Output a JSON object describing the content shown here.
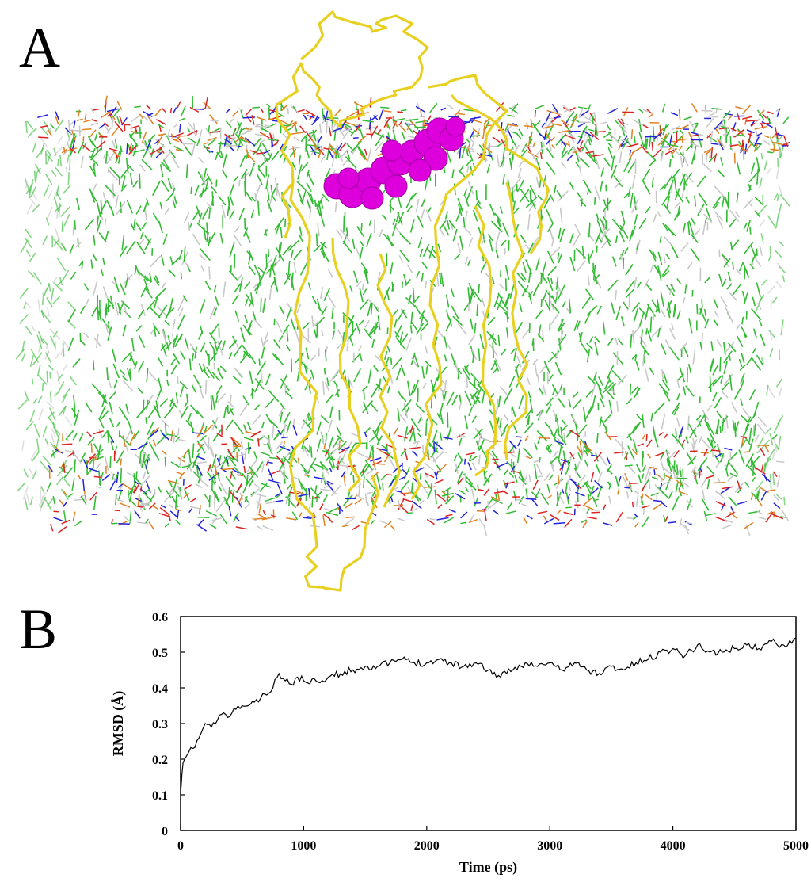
{
  "panels": {
    "a_label": "A",
    "b_label": "B"
  },
  "molecular_render": {
    "colors": {
      "lipid_carbon": "#33bb33",
      "lipid_hydrogen": "#c8c8c8",
      "lipid_oxygen": "#dd2222",
      "lipid_nitrogen": "#2222dd",
      "lipid_phosphorus": "#e08020",
      "protein_backbone": "#e8d020",
      "ligand": "#dd00dd"
    }
  },
  "chart_data": {
    "type": "line",
    "title": "",
    "xlabel": "Time (ps)",
    "ylabel": "RMSD (Å)",
    "xlim": [
      0,
      5000
    ],
    "ylim": [
      0,
      0.6
    ],
    "xticks": [
      "0",
      "1000",
      "2000",
      "3000",
      "4000",
      "5000"
    ],
    "yticks": [
      "0",
      "0.1",
      "0.2",
      "0.3",
      "0.4",
      "0.5",
      "0.6"
    ],
    "grid": false,
    "line_color": "#000000",
    "series": [
      {
        "x": [
          0,
          20,
          50,
          100,
          150,
          200,
          250,
          300,
          350,
          400,
          450,
          500,
          550,
          600,
          650,
          700,
          750,
          800,
          850,
          900,
          950,
          1000,
          1100,
          1200,
          1300,
          1400,
          1500,
          1600,
          1700,
          1800,
          1900,
          2000,
          2100,
          2200,
          2300,
          2400,
          2500,
          2600,
          2650,
          2700,
          2800,
          2900,
          3000,
          3100,
          3200,
          3300,
          3400,
          3500,
          3600,
          3700,
          3800,
          3900,
          4000,
          4100,
          4200,
          4300,
          4400,
          4500,
          4600,
          4700,
          4800,
          4900,
          5000
        ],
        "values": [
          0.1,
          0.19,
          0.21,
          0.23,
          0.26,
          0.3,
          0.29,
          0.31,
          0.33,
          0.32,
          0.34,
          0.35,
          0.35,
          0.36,
          0.37,
          0.38,
          0.4,
          0.44,
          0.42,
          0.41,
          0.43,
          0.42,
          0.42,
          0.43,
          0.44,
          0.45,
          0.46,
          0.46,
          0.47,
          0.48,
          0.47,
          0.47,
          0.48,
          0.47,
          0.46,
          0.47,
          0.45,
          0.43,
          0.44,
          0.45,
          0.47,
          0.46,
          0.47,
          0.45,
          0.47,
          0.45,
          0.44,
          0.46,
          0.45,
          0.47,
          0.48,
          0.5,
          0.51,
          0.49,
          0.52,
          0.5,
          0.5,
          0.51,
          0.52,
          0.51,
          0.53,
          0.52,
          0.54
        ]
      }
    ]
  }
}
